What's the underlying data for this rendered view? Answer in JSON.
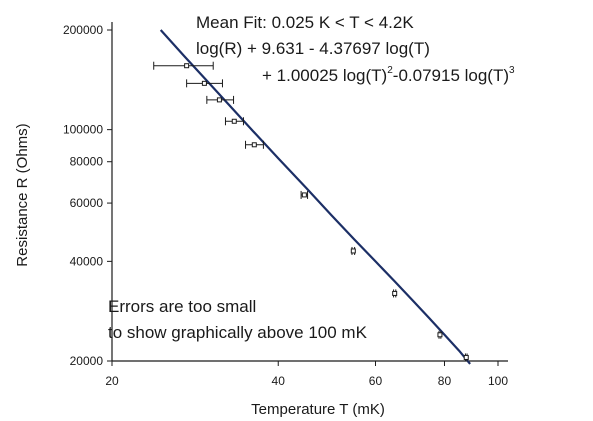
{
  "chart_data": {
    "type": "line",
    "title": "",
    "xlabel": "Temperature T (mK)",
    "ylabel": "Resistance R (Ohms)",
    "x_scale": "log",
    "y_scale": "log",
    "xlim": [
      20,
      100
    ],
    "ylim": [
      20000,
      200000
    ],
    "x_ticks": [
      {
        "value": 20,
        "label": "20"
      },
      {
        "value": 40,
        "label": "40"
      },
      {
        "value": 60,
        "label": "60"
      },
      {
        "value": 80,
        "label": "80"
      },
      {
        "value": 100,
        "label": "100"
      }
    ],
    "y_ticks": [
      {
        "value": 200000,
        "label": "200000"
      },
      {
        "value": 100000,
        "label": "100000"
      },
      {
        "value": 80000,
        "label": "80000"
      },
      {
        "value": 60000,
        "label": "60000"
      },
      {
        "value": 40000,
        "label": "40000"
      },
      {
        "value": 20000,
        "label": "20000"
      }
    ],
    "fit_curve": {
      "x": [
        24.5,
        27,
        30,
        33,
        36,
        40,
        45,
        50,
        55,
        60,
        65,
        70,
        75,
        80,
        85,
        89
      ],
      "y": [
        200000,
        167000,
        138000,
        116000,
        99000,
        82000,
        66500,
        55000,
        46500,
        40000,
        34800,
        30500,
        27000,
        24000,
        21500,
        19600
      ]
    },
    "points": [
      {
        "x": 27.3,
        "y": 156000,
        "x_err_low": 3.5,
        "x_err_high": 3.2
      },
      {
        "x": 29.4,
        "y": 138000,
        "x_err_low": 2.1,
        "x_err_high": 2.3
      },
      {
        "x": 31.3,
        "y": 123000,
        "x_err_low": 1.6,
        "x_err_high": 1.9
      },
      {
        "x": 33.3,
        "y": 106000,
        "x_err_low": 1.2,
        "x_err_high": 1.3
      },
      {
        "x": 36.2,
        "y": 90000,
        "x_err_low": 1.3,
        "x_err_high": 1.4
      },
      {
        "x": 44.6,
        "y": 63500,
        "x_err_low": 0.6,
        "x_err_high": 0.6
      },
      {
        "x": 54.7,
        "y": 43000,
        "x_err_low": 0.3,
        "x_err_high": 0.3
      },
      {
        "x": 65.0,
        "y": 32000,
        "x_err_low": 0.3,
        "x_err_high": 0.3
      },
      {
        "x": 78.5,
        "y": 24000,
        "x_err_low": 0.3,
        "x_err_high": 0.3
      },
      {
        "x": 87.6,
        "y": 20500,
        "x_err_low": 0.3,
        "x_err_high": 0.3
      }
    ],
    "fit_annotation": {
      "line1": "Mean Fit: 0.025 K < T < 4.2K",
      "line2": "log(R) + 9.631 - 4.37697 log(T)",
      "line3_a": "+ 1.00025 log(T)",
      "line3_b": "2",
      "line3_c": "-0.07915 log(T)",
      "line3_d": "3"
    },
    "note": {
      "line1": "Errors are too small",
      "line2": "to show graphically above 100 mK"
    },
    "colors": {
      "curve": "#1c2f66",
      "axis": "#1a1a1a",
      "points": "#1a1a1a"
    },
    "grid": false,
    "legend": "none"
  }
}
